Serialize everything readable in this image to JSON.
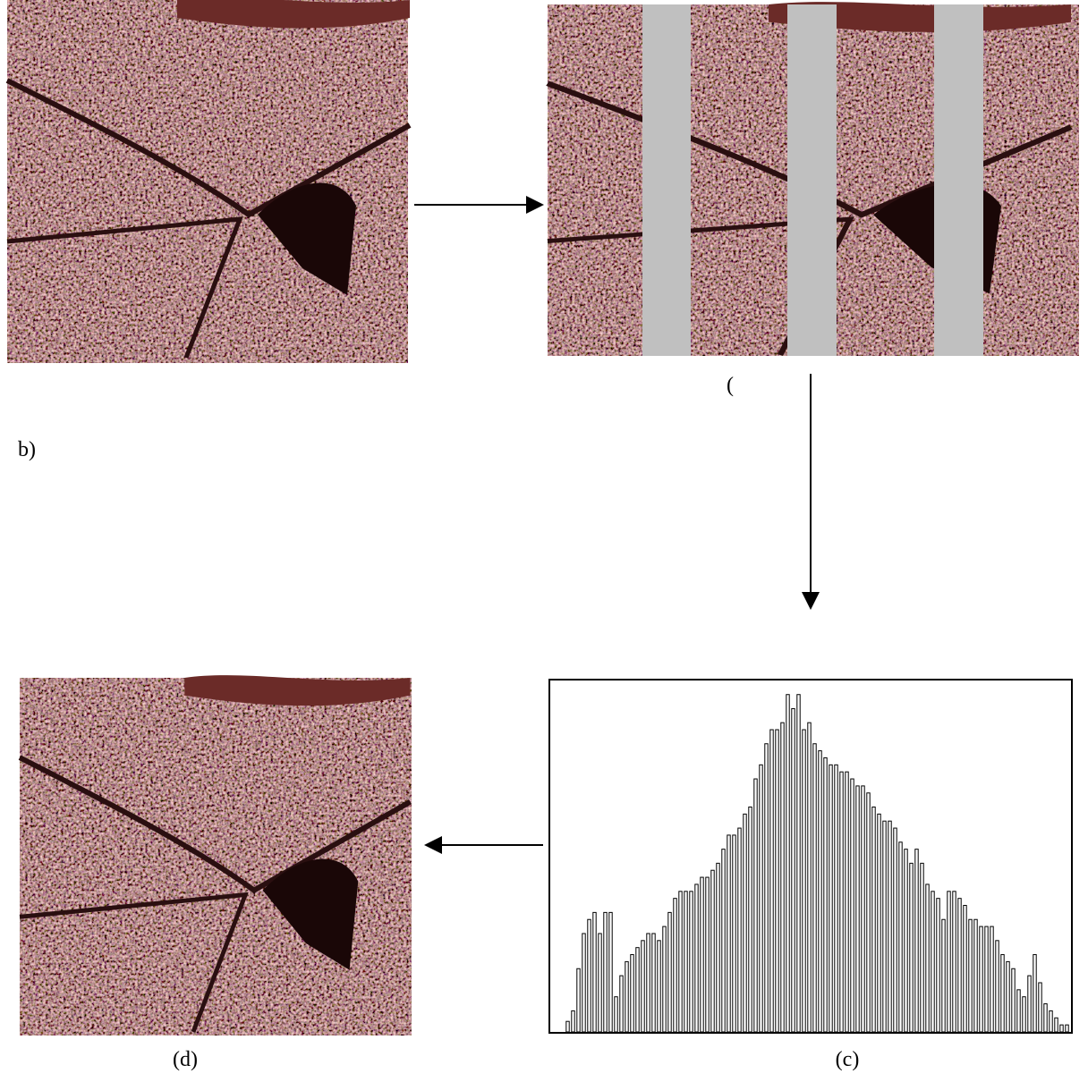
{
  "labels": {
    "panel_b": "b)",
    "panel_b_paren": "(",
    "panel_c": "(c)",
    "panel_d": "(d)"
  },
  "histogram": {
    "type": "bar",
    "values": [
      3,
      6,
      18,
      28,
      32,
      34,
      28,
      34,
      34,
      10,
      16,
      20,
      22,
      24,
      26,
      28,
      28,
      26,
      30,
      34,
      38,
      40,
      40,
      40,
      42,
      44,
      44,
      46,
      48,
      52,
      56,
      56,
      58,
      62,
      64,
      72,
      76,
      82,
      86,
      86,
      88,
      96,
      92,
      96,
      86,
      88,
      82,
      80,
      78,
      76,
      76,
      74,
      74,
      72,
      70,
      70,
      68,
      64,
      62,
      60,
      60,
      58,
      54,
      52,
      48,
      52,
      48,
      42,
      40,
      38,
      32,
      40,
      40,
      38,
      36,
      32,
      32,
      30,
      30,
      30,
      26,
      22,
      20,
      18,
      12,
      10,
      16,
      22,
      14,
      8,
      6,
      4,
      2,
      2
    ],
    "ylim": [
      0,
      100
    ]
  }
}
